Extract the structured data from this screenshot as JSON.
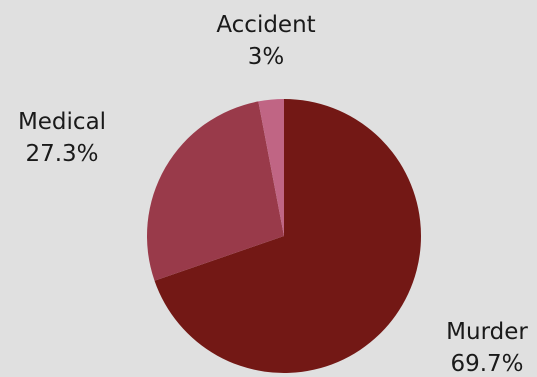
{
  "chart_data": {
    "type": "pie",
    "slices": [
      {
        "label": "Murder",
        "value": 69.7,
        "display": "69.7%",
        "color": "#731815"
      },
      {
        "label": "Medical",
        "value": 27.3,
        "display": "27.3%",
        "color": "#993a4a"
      },
      {
        "label": "Accident",
        "value": 3,
        "display": "3%",
        "color": "#c06584"
      }
    ],
    "start_angle_deg": 0,
    "direction": "clockwise",
    "legend": "none"
  },
  "colors": {
    "background": "#e0e0e0",
    "label_text": "#1a1a1a"
  }
}
